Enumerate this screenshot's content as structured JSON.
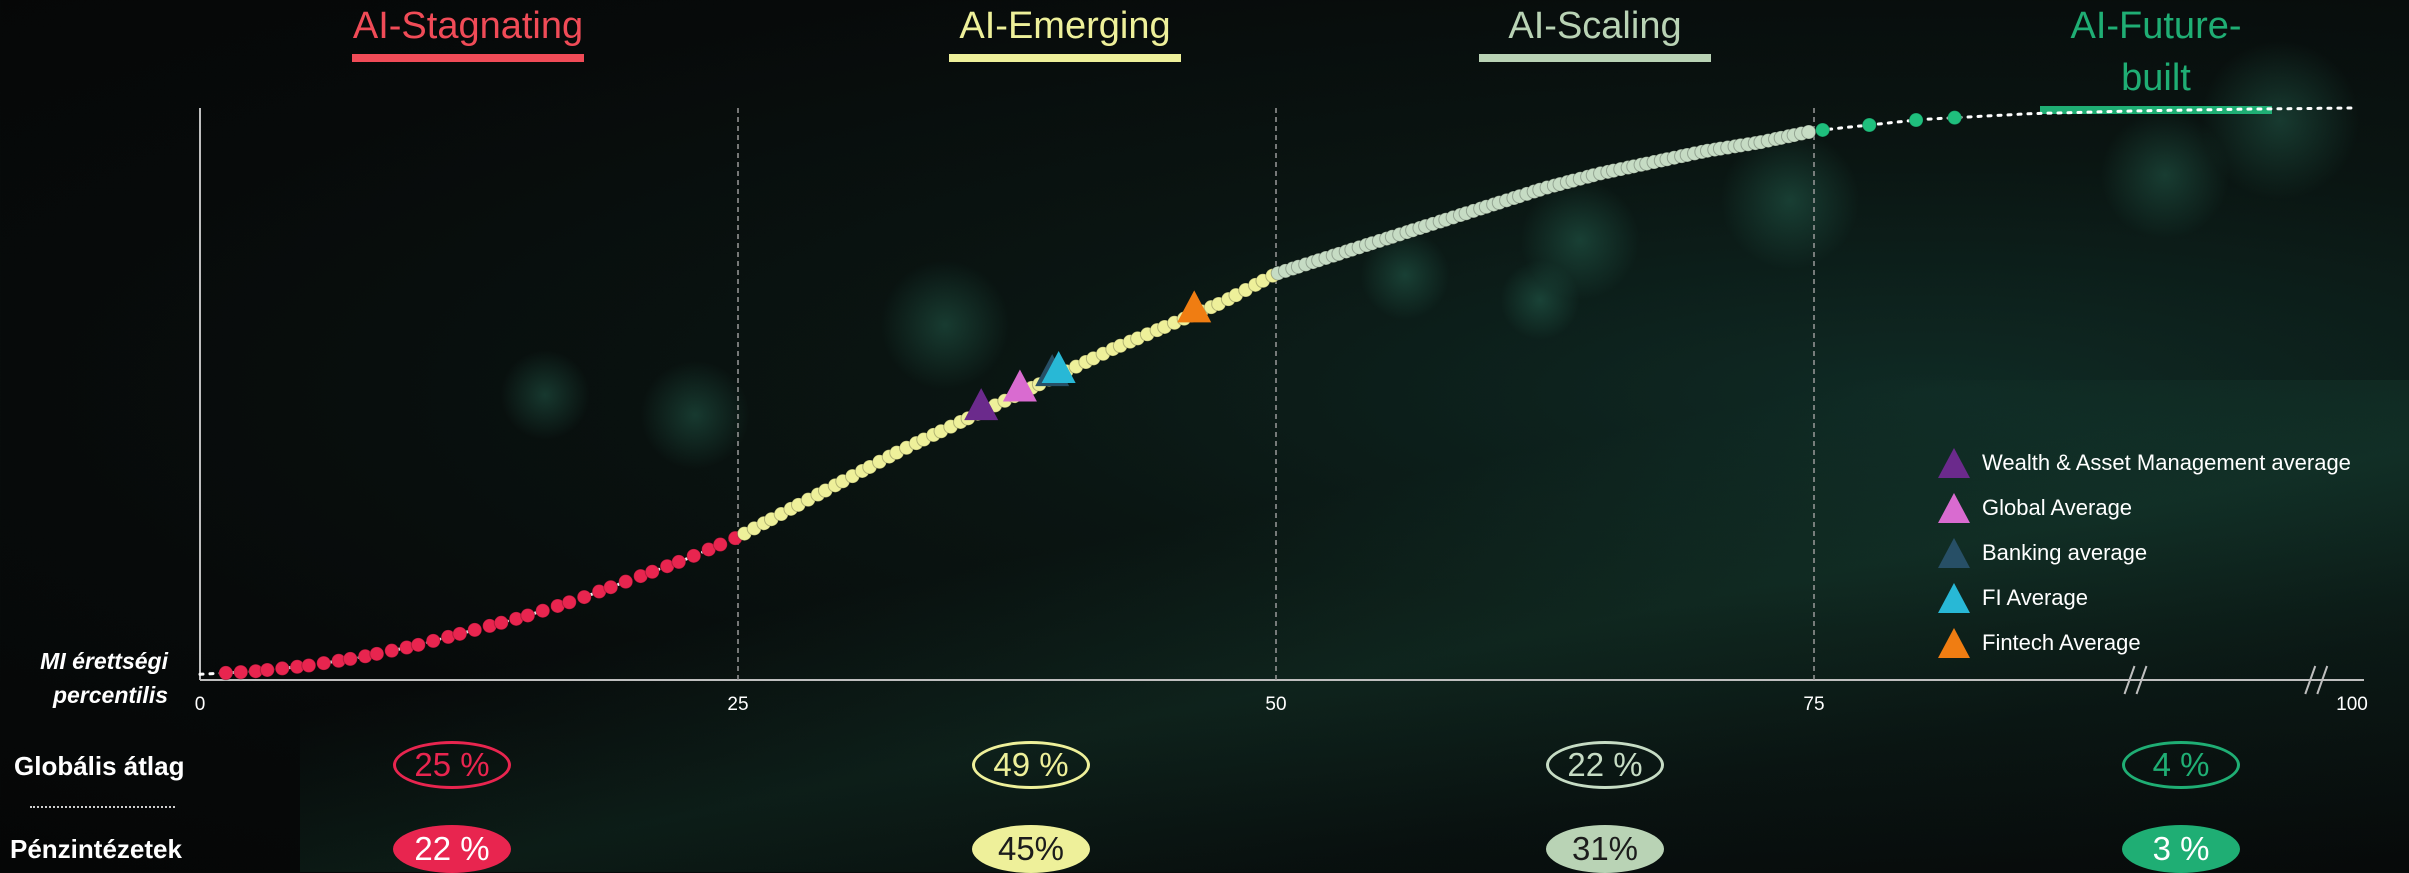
{
  "stages": [
    {
      "label": "AI-Stagnating",
      "color": "#f04b57"
    },
    {
      "label": "AI-Emerging",
      "color": "#eef09a"
    },
    {
      "label": "AI-Scaling",
      "color": "#b9d3b5"
    },
    {
      "label": "AI-Future-built",
      "color": "#1fae74"
    }
  ],
  "y_label": "MI érettségi percentilis",
  "rows": {
    "global_label": "Globális átlag",
    "fi_label": "Pénzintézetek",
    "global_values": [
      "25 %",
      "49 %",
      "22 %",
      "4 %"
    ],
    "fi_values": [
      "22 %",
      "45%",
      "31%",
      "3 %"
    ]
  },
  "legend": [
    {
      "label": "Wealth & Asset Management average",
      "color": "#6b2a8c"
    },
    {
      "label": "Global Average",
      "color": "#d96bd0"
    },
    {
      "label": "Banking average",
      "color": "#274f66"
    },
    {
      "label": "FI Average",
      "color": "#28b8d6"
    },
    {
      "label": "Fintech Average",
      "color": "#f07d12"
    }
  ],
  "chart_data": {
    "type": "scatter",
    "x_ticks": [
      "0",
      "25",
      "50",
      "75",
      "100"
    ],
    "xlim": [
      0,
      100
    ],
    "ylim": [
      0,
      100
    ],
    "x_axis_break": true,
    "curve": [
      [
        0,
        1
      ],
      [
        2.5,
        1.5
      ],
      [
        5,
        2.5
      ],
      [
        7.5,
        4
      ],
      [
        10,
        6
      ],
      [
        12.5,
        8.5
      ],
      [
        15,
        11
      ],
      [
        17.5,
        14
      ],
      [
        20,
        17.5
      ],
      [
        22.5,
        21
      ],
      [
        25,
        25
      ],
      [
        27.5,
        30
      ],
      [
        30,
        35
      ],
      [
        32.5,
        40
      ],
      [
        35,
        44.5
      ],
      [
        37.5,
        49
      ],
      [
        40,
        53.5
      ],
      [
        42.5,
        58
      ],
      [
        45,
        62
      ],
      [
        47.5,
        66
      ],
      [
        50,
        71
      ],
      [
        52.5,
        74
      ],
      [
        55,
        77
      ],
      [
        57.5,
        80
      ],
      [
        60,
        83
      ],
      [
        62.5,
        86
      ],
      [
        65,
        88.5
      ],
      [
        67.5,
        90.5
      ],
      [
        70,
        92.5
      ],
      [
        72.5,
        94
      ],
      [
        75,
        96
      ],
      [
        80,
        98
      ],
      [
        85,
        99
      ],
      [
        90,
        99.5
      ],
      [
        95,
        99.8
      ],
      [
        100,
        100
      ]
    ],
    "series": [
      {
        "name": "AI-Stagnating",
        "color": "#e8254f",
        "x_start": 1.2,
        "x_end": 24.8,
        "count": 38
      },
      {
        "name": "AI-Emerging",
        "color": "#eef09a",
        "x_start": 25.3,
        "x_end": 49.8,
        "count": 60
      },
      {
        "name": "AI-Scaling",
        "color": "#c6dcc4",
        "x_start": 50.1,
        "x_end": 74.7,
        "count": 80
      },
      {
        "name": "AI-Future-built",
        "color": "#1fbf7d",
        "x_start": 75.4,
        "x_end": 81.5,
        "count": 4
      }
    ],
    "markers": [
      {
        "name": "Wealth & Asset Management average",
        "x": 36.3,
        "color": "#6b2a8c"
      },
      {
        "name": "Global Average",
        "x": 38.1,
        "color": "#d96bd0"
      },
      {
        "name": "Banking average",
        "x": 39.6,
        "color": "#274f66"
      },
      {
        "name": "FI Average",
        "x": 39.9,
        "color": "#28b8d6"
      },
      {
        "name": "Fintech Average",
        "x": 46.2,
        "color": "#f07d12"
      }
    ]
  }
}
